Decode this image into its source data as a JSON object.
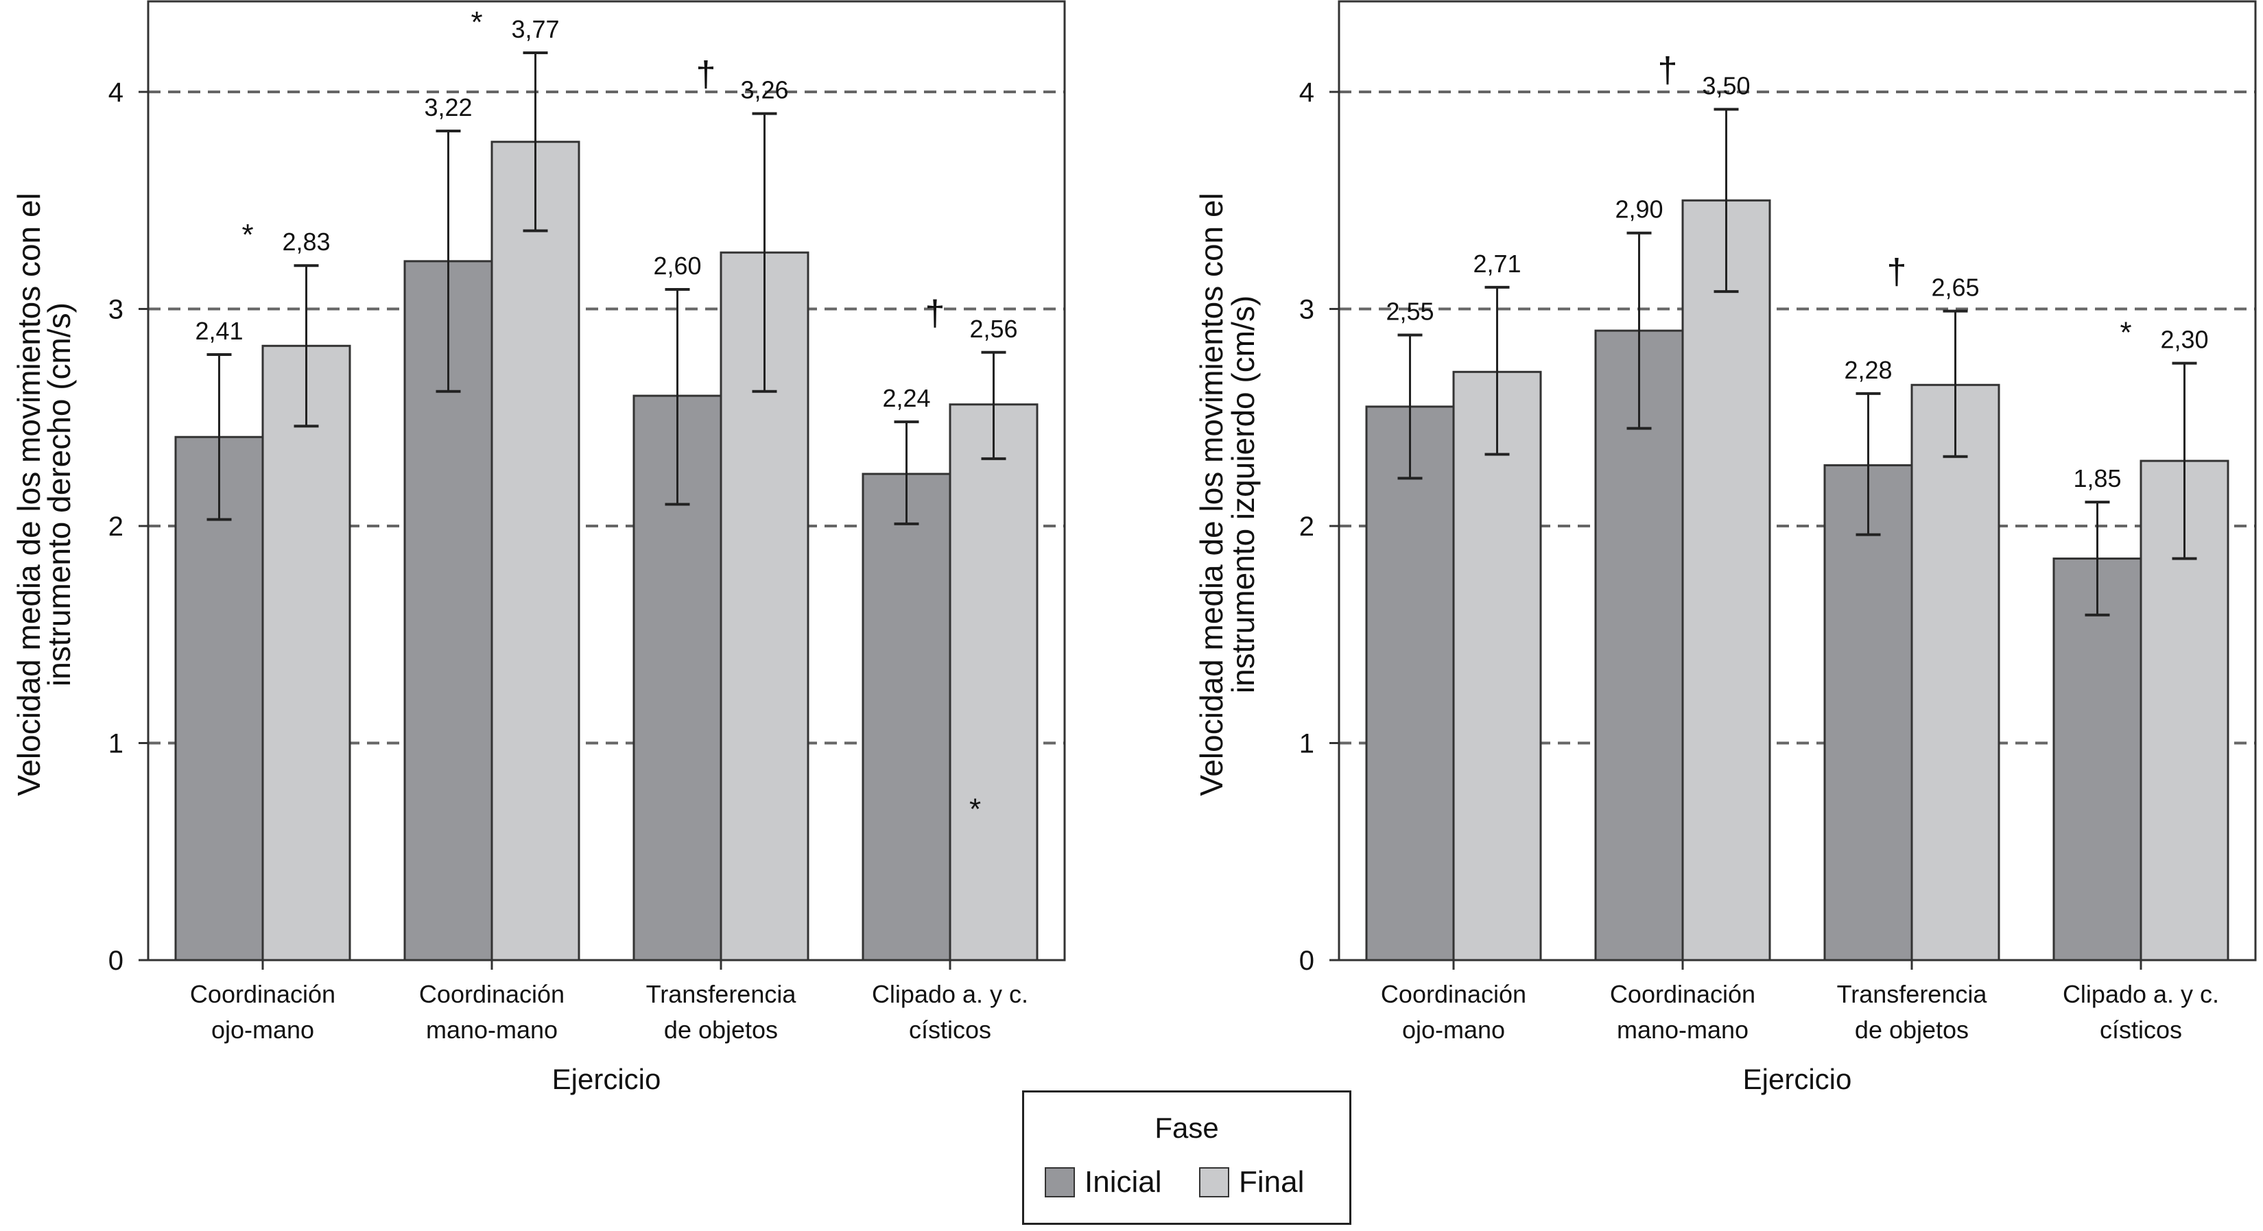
{
  "legend": {
    "title": "Fase",
    "items": [
      {
        "label": "Inicial",
        "color": "#96979b"
      },
      {
        "label": "Final",
        "color": "#c9cacc"
      }
    ]
  },
  "chart_data": [
    {
      "type": "bar",
      "title": "",
      "xlabel": "Ejercicio",
      "ylabel": [
        "Velocidad media de los movimientos con el",
        "instrumento derecho (cm/s)"
      ],
      "ylim": [
        0,
        4.4
      ],
      "yticks": [
        "0",
        "1",
        "2",
        "3",
        "4"
      ],
      "grid": "dashed horizontal at 1, 2, 3, 4",
      "categories": [
        [
          "Coordinación",
          "ojo-mano"
        ],
        [
          "Coordinación",
          "mano-mano"
        ],
        [
          "Transferencia",
          "de objetos"
        ],
        [
          "Clipado a. y c.",
          "císticos"
        ]
      ],
      "series": [
        {
          "name": "Inicial",
          "values": [
            2.41,
            3.22,
            2.6,
            2.24
          ],
          "labels": [
            "2,41",
            "3,22",
            "2,60",
            "2,24"
          ],
          "err_low": [
            2.03,
            2.62,
            2.1,
            2.01
          ],
          "err_high": [
            2.79,
            3.82,
            3.09,
            2.48
          ]
        },
        {
          "name": "Final",
          "values": [
            2.83,
            3.77,
            3.26,
            2.56
          ],
          "labels": [
            "2,83",
            "3,77",
            "3,26",
            "2,56"
          ],
          "err_low": [
            2.46,
            3.36,
            2.62,
            2.31
          ],
          "err_high": [
            3.2,
            4.18,
            3.9,
            2.8
          ]
        }
      ],
      "markers": [
        {
          "cat": 0,
          "symbol": "*"
        },
        {
          "cat": 1,
          "symbol": "*"
        },
        {
          "cat": 2,
          "symbol": "†"
        },
        {
          "cat": 3,
          "symbol": "†"
        },
        {
          "cat": 3,
          "symbol": "*",
          "note": "inside final bar"
        }
      ]
    },
    {
      "type": "bar",
      "title": "",
      "xlabel": "Ejercicio",
      "ylabel": [
        "Velocidad media de los movimientos con el",
        "instrumento izquierdo (cm/s)"
      ],
      "ylim": [
        0,
        4.4
      ],
      "yticks": [
        "0",
        "1",
        "2",
        "3",
        "4"
      ],
      "grid": "dashed horizontal at 1, 2, 3, 4",
      "categories": [
        [
          "Coordinación",
          "ojo-mano"
        ],
        [
          "Coordinación",
          "mano-mano"
        ],
        [
          "Transferencia",
          "de objetos"
        ],
        [
          "Clipado a. y c.",
          "císticos"
        ]
      ],
      "series": [
        {
          "name": "Inicial",
          "values": [
            2.55,
            2.9,
            2.28,
            1.85
          ],
          "labels": [
            "2,55",
            "2,90",
            "2,28",
            "1,85"
          ],
          "err_low": [
            2.22,
            2.45,
            1.96,
            1.59
          ],
          "err_high": [
            2.88,
            3.35,
            2.61,
            2.11
          ]
        },
        {
          "name": "Final",
          "values": [
            2.71,
            3.5,
            2.65,
            2.3
          ],
          "labels": [
            "2,71",
            "3,50",
            "2,65",
            "2,30"
          ],
          "err_low": [
            2.33,
            3.08,
            2.32,
            1.85
          ],
          "err_high": [
            3.1,
            3.92,
            2.99,
            2.75
          ]
        }
      ],
      "markers": [
        {
          "cat": 1,
          "symbol": "†"
        },
        {
          "cat": 2,
          "symbol": "†"
        },
        {
          "cat": 3,
          "symbol": "*"
        }
      ]
    }
  ]
}
